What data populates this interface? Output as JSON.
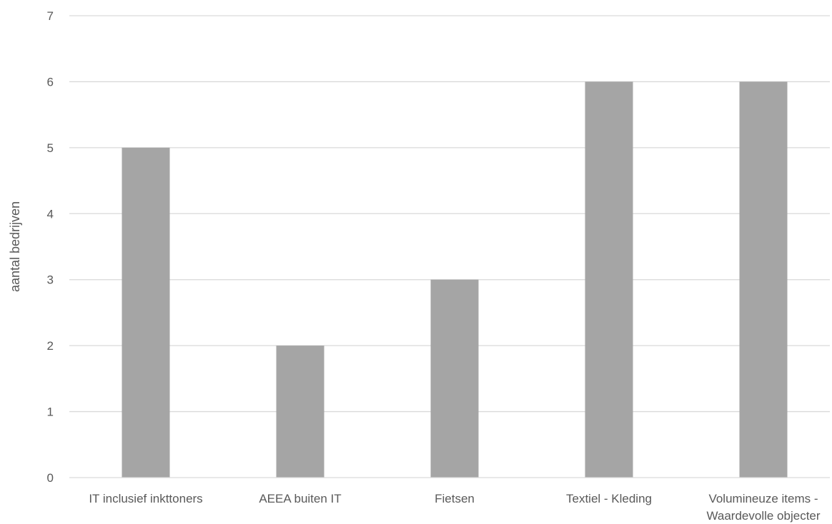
{
  "chart_data": {
    "type": "bar",
    "categories": [
      [
        "IT inclusief inkttoners"
      ],
      [
        "AEEA buiten IT"
      ],
      [
        "Fietsen"
      ],
      [
        "Textiel - Kleding"
      ],
      [
        "Volumineuze items -",
        "Waardevolle objecter"
      ]
    ],
    "values": [
      5,
      2,
      3,
      6,
      6
    ],
    "title": "",
    "xlabel": "",
    "ylabel": "aantal bedrijven",
    "ylim": [
      0,
      7
    ],
    "yticks": [
      0,
      1,
      2,
      3,
      4,
      5,
      6,
      7
    ],
    "grid": true,
    "legend": "none",
    "colors": {
      "bar": "#a5a5a5",
      "grid": "#d9d9d9",
      "axis": "#d9d9d9",
      "text": "#595959"
    }
  }
}
